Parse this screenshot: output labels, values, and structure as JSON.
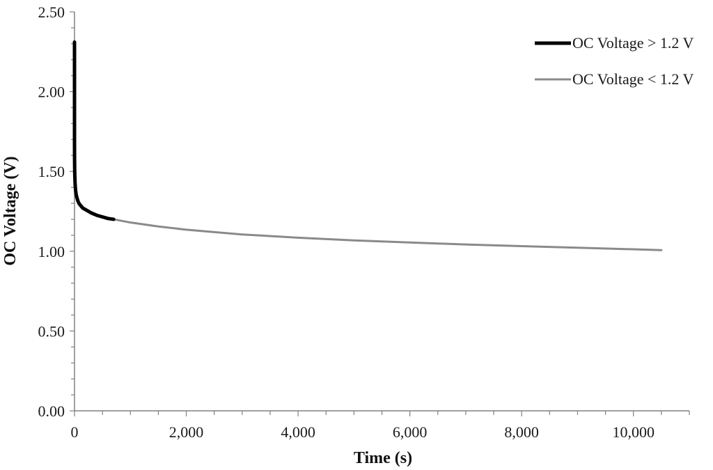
{
  "chart_data": {
    "type": "line",
    "title": "",
    "xlabel": "Time (s)",
    "ylabel": "OC Voltage (V)",
    "xlim": [
      0,
      11000
    ],
    "ylim": [
      0,
      2.5
    ],
    "x_ticks": [
      {
        "value": 0,
        "label": "0"
      },
      {
        "value": 2000,
        "label": "2,000"
      },
      {
        "value": 4000,
        "label": "4,000"
      },
      {
        "value": 6000,
        "label": "6,000"
      },
      {
        "value": 8000,
        "label": "8,000"
      },
      {
        "value": 10000,
        "label": "10,000"
      }
    ],
    "y_ticks": [
      {
        "value": 0,
        "label": "0.00"
      },
      {
        "value": 0.5,
        "label": "0.50"
      },
      {
        "value": 1.0,
        "label": "1.00"
      },
      {
        "value": 1.5,
        "label": "1.50"
      },
      {
        "value": 2.0,
        "label": "2.00"
      },
      {
        "value": 2.5,
        "label": "2.50"
      }
    ],
    "x_minor_step": 500,
    "y_minor_step": 0.1,
    "grid": false,
    "legend_position": "top-right",
    "series": [
      {
        "name": "OC Voltage > 1.2 V",
        "color": "#000000",
        "x": [
          0,
          0,
          1,
          3,
          5,
          10,
          15,
          20,
          30,
          40,
          60,
          80,
          100,
          150,
          200,
          300,
          400,
          500,
          600,
          700
        ],
        "y": [
          2.31,
          1.7,
          1.58,
          1.52,
          1.48,
          1.43,
          1.4,
          1.38,
          1.355,
          1.34,
          1.315,
          1.3,
          1.29,
          1.27,
          1.26,
          1.24,
          1.225,
          1.215,
          1.205,
          1.2
        ]
      },
      {
        "name": "OC Voltage < 1.2 V",
        "color": "#8a8a8a",
        "x": [
          700,
          1000,
          1500,
          2000,
          3000,
          4000,
          5000,
          6000,
          7000,
          8000,
          9000,
          10000,
          10500
        ],
        "y": [
          1.2,
          1.18,
          1.155,
          1.135,
          1.105,
          1.085,
          1.068,
          1.055,
          1.042,
          1.032,
          1.022,
          1.012,
          1.007
        ]
      }
    ]
  }
}
